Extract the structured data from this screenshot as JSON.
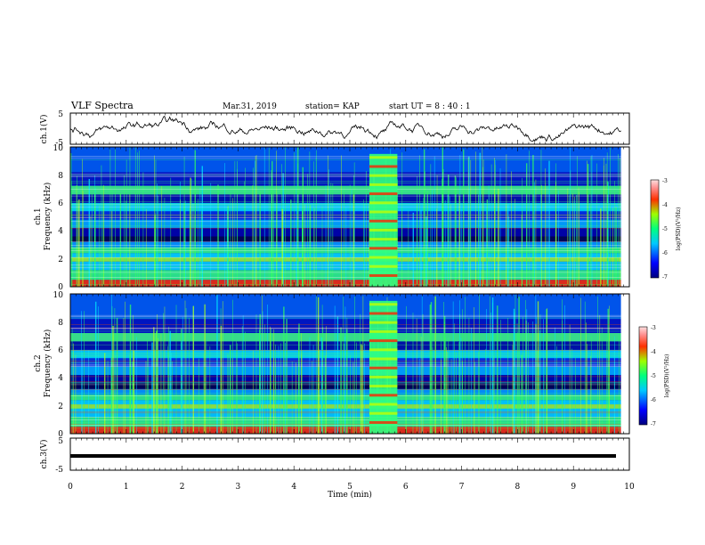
{
  "header": {
    "title": "VLF Spectra",
    "date": "Mar.31, 2019",
    "station": "station= KAP",
    "start": "start  UT =  8 : 40 : 1"
  },
  "panels": {
    "ch1_wave_label": "ch.1(V)",
    "ch1_spec_label_a": "ch.1",
    "ch2_spec_label_a": "ch.2",
    "freq_label": "Frequency  (kHz)",
    "ch3_wave_label": "ch.3(V)",
    "wave_ticks": [
      "5",
      "-5"
    ],
    "freq_ticks": [
      "0",
      "2",
      "4",
      "6",
      "8",
      "10"
    ],
    "colorbar_label": "log(PSD)(V²/Hz)",
    "colorbar_ticks": [
      "-3",
      "-4",
      "-5",
      "-6",
      "-7"
    ]
  },
  "xaxis": {
    "label": "Time  (min)",
    "ticks": [
      "0",
      "1",
      "2",
      "3",
      "4",
      "5",
      "6",
      "7",
      "8",
      "9",
      "10"
    ]
  },
  "chart_data": {
    "type": "heatmap",
    "title": "VLF Spectra",
    "xlabel": "Time  (min)",
    "xlim": [
      0,
      10
    ],
    "data_time_extent": [
      0,
      9.85
    ],
    "panels": [
      {
        "name": "ch.1(V)",
        "kind": "waveform",
        "ylim": [
          -5,
          5
        ],
        "baseline_approx": 0
      },
      {
        "name": "ch.1",
        "kind": "spectrogram",
        "ylabel": "Frequency  (kHz)",
        "ylim": [
          0,
          10
        ],
        "colorbar": {
          "label": "log(PSD)(V²/Hz)",
          "range": [
            -7,
            -3
          ]
        },
        "burst_interval_min": [
          5.35,
          5.85
        ]
      },
      {
        "name": "ch.2",
        "kind": "spectrogram",
        "ylabel": "Frequency  (kHz)",
        "ylim": [
          0,
          10
        ],
        "colorbar": {
          "label": "log(PSD)(V²/Hz)",
          "range": [
            -7,
            -3
          ]
        },
        "burst_interval_min": [
          5.35,
          5.85
        ]
      },
      {
        "name": "ch.3(V)",
        "kind": "waveform",
        "ylim": [
          -5,
          5
        ],
        "constant_value_approx": 0
      }
    ]
  }
}
